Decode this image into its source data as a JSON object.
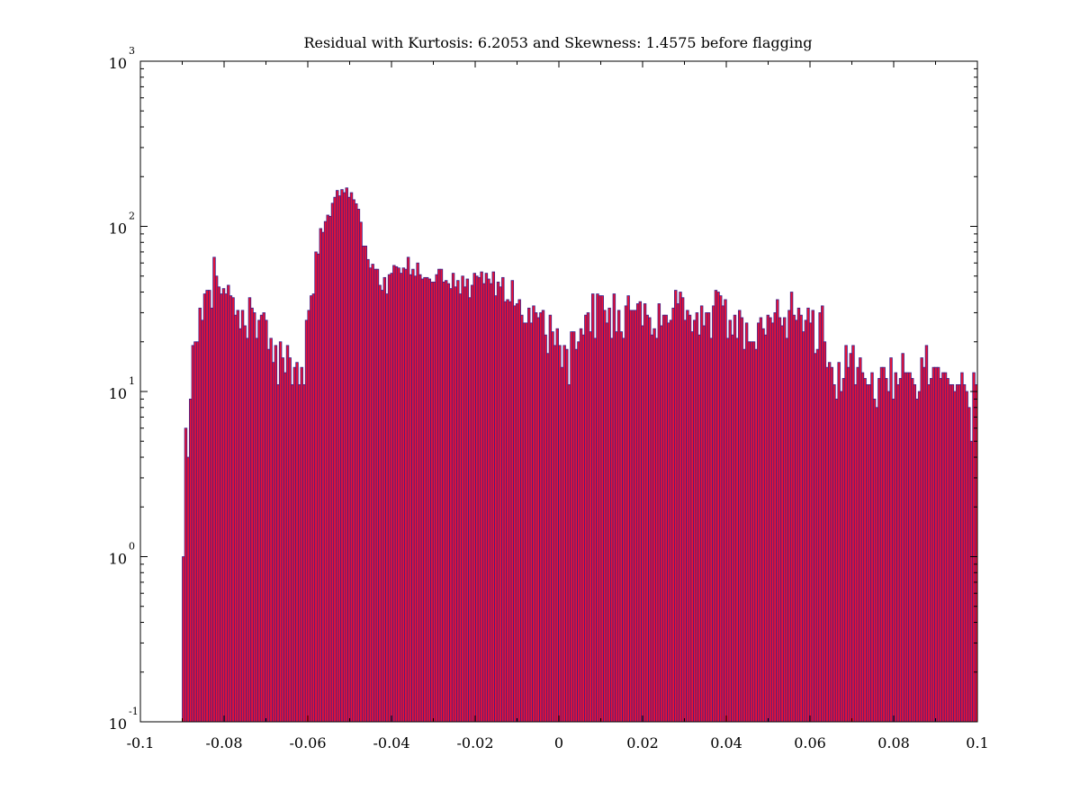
{
  "chart_data": {
    "type": "bar",
    "title": "Residual with Kurtosis: 6.2053 and Skewness: 1.4575 before flagging",
    "xlabel": "",
    "ylabel": "",
    "xlim": [
      -0.1,
      0.1
    ],
    "ylim": [
      0.1,
      1000
    ],
    "y_scale": "log",
    "grid": false,
    "legend": "none",
    "colors": {
      "bar_fill": "#ee1133",
      "bar_edge": "#3a1f8a",
      "axis": "#000000"
    },
    "x_ticks": [
      {
        "value": -0.1,
        "label": "-0.1"
      },
      {
        "value": -0.08,
        "label": "-0.08"
      },
      {
        "value": -0.06,
        "label": "-0.06"
      },
      {
        "value": -0.04,
        "label": "-0.04"
      },
      {
        "value": -0.02,
        "label": "-0.02"
      },
      {
        "value": 0,
        "label": "0"
      },
      {
        "value": 0.02,
        "label": "0.02"
      },
      {
        "value": 0.04,
        "label": "0.04"
      },
      {
        "value": 0.06,
        "label": "0.06"
      },
      {
        "value": 0.08,
        "label": "0.08"
      },
      {
        "value": 0.1,
        "label": "0.1"
      }
    ],
    "y_ticks": [
      {
        "value": 0.1,
        "base": "10",
        "exp": "-1"
      },
      {
        "value": 1,
        "base": "10",
        "exp": "0"
      },
      {
        "value": 10,
        "base": "10",
        "exp": "1"
      },
      {
        "value": 100,
        "base": "10",
        "exp": "2"
      },
      {
        "value": 1000,
        "base": "10",
        "exp": "3"
      }
    ],
    "bin_start": -0.09,
    "bin_end": 0.1,
    "counts": [
      1,
      6,
      4,
      9,
      19,
      20,
      20,
      32,
      27,
      39,
      41,
      41,
      32,
      65,
      50,
      43,
      39,
      42,
      39,
      44,
      38,
      37,
      29,
      31,
      24,
      31,
      25,
      21,
      37,
      32,
      30,
      21,
      27,
      29,
      30,
      27,
      18,
      21,
      15,
      19,
      11,
      20,
      16,
      13,
      19,
      16,
      11,
      14,
      15,
      11,
      14,
      11,
      27,
      31,
      38,
      39,
      70,
      68,
      97,
      92,
      107,
      117,
      115,
      138,
      150,
      165,
      153,
      167,
      160,
      171,
      150,
      160,
      145,
      137,
      127,
      106,
      76,
      76,
      63,
      56,
      59,
      55,
      55,
      44,
      41,
      49,
      39,
      51,
      52,
      58,
      57,
      56,
      52,
      56,
      55,
      65,
      51,
      55,
      50,
      60,
      51,
      48,
      49,
      49,
      48,
      46,
      46,
      51,
      55,
      55,
      46,
      47,
      45,
      42,
      52,
      43,
      47,
      39,
      50,
      43,
      48,
      37,
      44,
      52,
      50,
      49,
      53,
      45,
      52,
      48,
      45,
      53,
      38,
      46,
      43,
      49,
      35,
      36,
      35,
      47,
      33,
      34,
      36,
      29,
      26,
      26,
      32,
      26,
      33,
      30,
      28,
      30,
      31,
      22,
      17,
      29,
      23,
      19,
      24,
      19,
      14,
      19,
      18,
      11,
      23,
      23,
      18,
      20,
      24,
      22,
      29,
      30,
      23,
      39,
      21,
      39,
      38,
      38,
      31,
      26,
      32,
      21,
      39,
      23,
      31,
      23,
      21,
      33,
      38,
      31,
      31,
      31,
      34,
      35,
      25,
      34,
      29,
      28,
      22,
      24,
      21,
      34,
      25,
      29,
      29,
      26,
      27,
      32,
      41,
      34,
      40,
      37,
      27,
      31,
      29,
      23,
      27,
      30,
      22,
      33,
      25,
      30,
      30,
      21,
      33,
      41,
      40,
      38,
      33,
      36,
      21,
      27,
      22,
      29,
      21,
      31,
      28,
      18,
      26,
      20,
      20,
      20,
      18,
      26,
      28,
      24,
      22,
      29,
      28,
      26,
      30,
      36,
      28,
      25,
      28,
      21,
      31,
      40,
      29,
      27,
      32,
      29,
      23,
      27,
      32,
      26,
      31,
      17,
      18,
      30,
      33,
      20,
      14,
      15,
      14,
      11,
      9,
      15,
      10,
      12,
      19,
      14,
      17,
      19,
      11,
      14,
      16,
      13,
      12,
      11,
      11,
      13,
      9,
      8,
      12,
      14,
      14,
      12,
      10,
      16,
      9,
      13,
      11,
      12,
      17,
      13,
      13,
      13,
      12,
      11,
      9,
      10,
      16,
      14,
      19,
      11,
      12,
      14,
      14,
      14,
      12,
      13,
      13,
      12,
      11,
      11,
      10,
      11,
      11,
      13,
      11,
      10,
      8,
      5,
      13,
      11
    ]
  }
}
